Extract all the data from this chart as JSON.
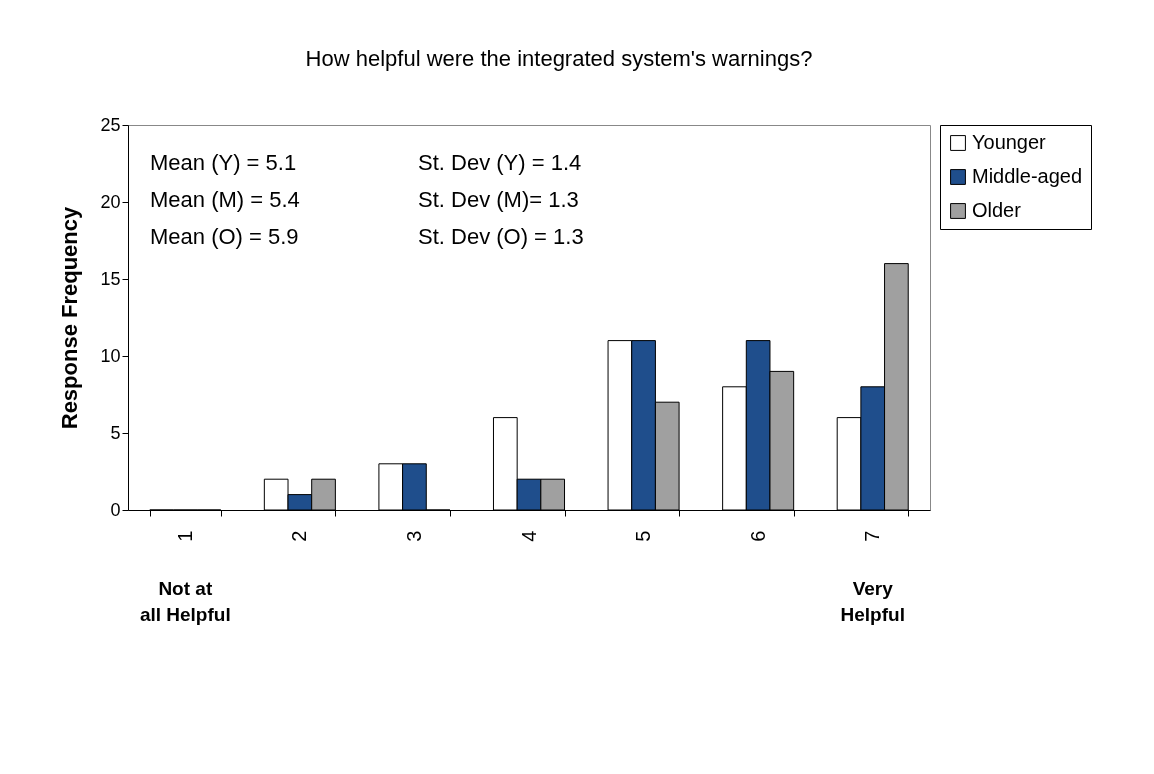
{
  "chart_data": {
    "type": "bar",
    "title": "How helpful were the integrated system's warnings?",
    "ylabel": "Response Frequency",
    "categories": [
      "1",
      "2",
      "3",
      "4",
      "5",
      "6",
      "7"
    ],
    "series": [
      {
        "name": "Younger",
        "color": "#ffffff",
        "values": [
          0,
          2,
          3,
          6,
          11,
          8,
          6
        ]
      },
      {
        "name": "Middle-aged",
        "color": "#1f4e8c",
        "values": [
          0,
          1,
          3,
          2,
          11,
          11,
          8
        ]
      },
      {
        "name": "Older",
        "color": "#a0a0a0",
        "values": [
          0,
          2,
          0,
          2,
          7,
          9,
          16
        ]
      }
    ],
    "ylim": [
      0,
      25
    ],
    "yticks": [
      0,
      5,
      10,
      15,
      20,
      25
    ],
    "legend": "right",
    "grid": false,
    "annotations": [
      "Mean (Y) = 5.1",
      "St. Dev (Y) = 1.4",
      "Mean (M) = 5.4",
      "St. Dev (M)= 1.3",
      "Mean (O) = 5.9",
      "St. Dev (O) = 1.3",
      "Not at\nall Helpful",
      "Very\nHelpful"
    ]
  }
}
